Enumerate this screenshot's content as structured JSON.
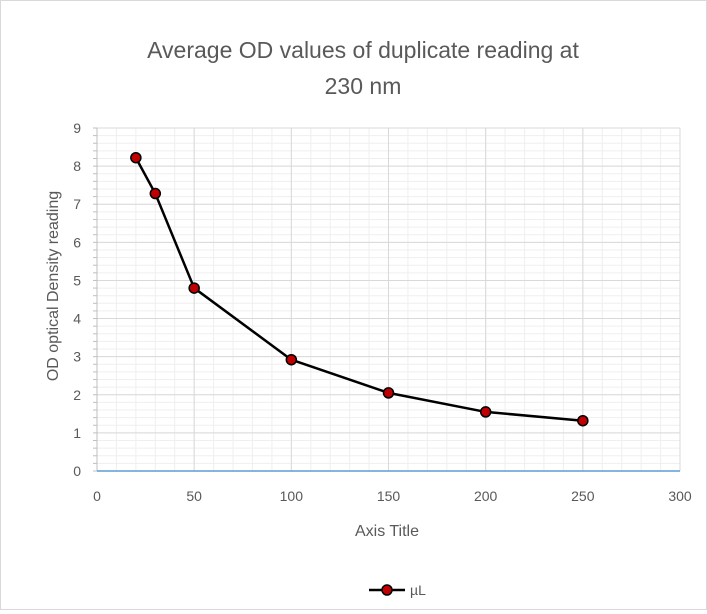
{
  "chart_data": {
    "type": "line",
    "title": "Average OD values of duplicate reading at 230 nm",
    "title_lines": [
      "Average OD values of duplicate reading at",
      "230 nm"
    ],
    "xlabel": "Axis Title",
    "ylabel": "OD optical Density reading",
    "xlim": [
      0,
      300
    ],
    "ylim": [
      0,
      9
    ],
    "xticks": [
      "0",
      "50",
      "100",
      "150",
      "200",
      "250",
      "300"
    ],
    "yticks": [
      "0",
      "1",
      "2",
      "3",
      "4",
      "5",
      "6",
      "7",
      "8",
      "9"
    ],
    "grid": true,
    "legend_position": "bottom",
    "series": [
      {
        "name": "µL",
        "color": "#000000",
        "marker_color": "#c00000",
        "x": [
          20,
          30,
          50,
          100,
          150,
          200,
          250
        ],
        "y": [
          8.22,
          7.28,
          4.8,
          2.92,
          2.05,
          1.55,
          1.32
        ]
      }
    ]
  }
}
